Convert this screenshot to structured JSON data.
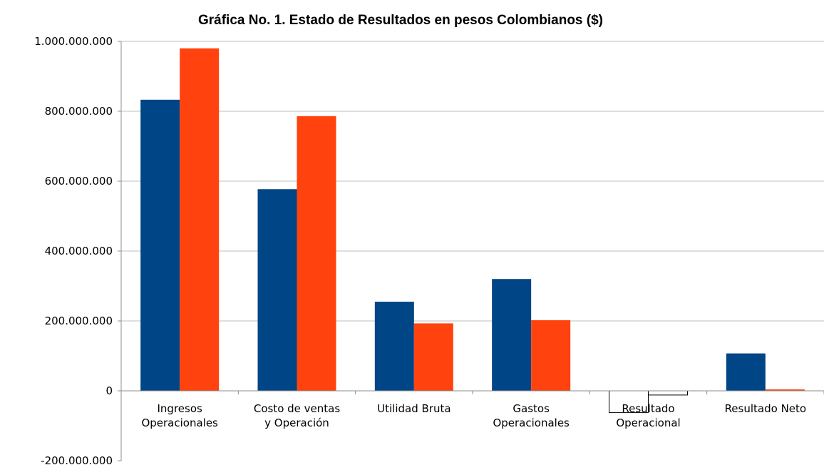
{
  "chart_data": {
    "type": "bar",
    "title": "Gráfica No. 1. Estado de Resultados en pesos Colombianos ($)",
    "xlabel": "",
    "ylabel": "",
    "ylim": [
      -200000000,
      1000000000
    ],
    "yticks": [
      -200000000,
      0,
      200000000,
      400000000,
      600000000,
      800000000,
      1000000000
    ],
    "ytick_labels": [
      "-200.000.000",
      "0",
      "200.000.000",
      "400.000.000",
      "600.000.000",
      "800.000.000",
      "1.000.000.000"
    ],
    "grid": true,
    "legend": "none",
    "categories": [
      [
        "Ingresos",
        "Operacionales"
      ],
      [
        "Costo de ventas",
        "y Operación"
      ],
      [
        "Utilidad Bruta"
      ],
      [
        "Gastos",
        "Operacionales"
      ],
      [
        "Resultado",
        "Operacional"
      ],
      [
        "Resultado Neto"
      ]
    ],
    "series": [
      {
        "color": "#004586",
        "values": [
          833000000,
          577000000,
          255000000,
          320000000,
          -62000000,
          107000000
        ]
      },
      {
        "color": "#ff420e",
        "values": [
          980000000,
          786000000,
          193000000,
          202000000,
          -12000000,
          4000000
        ]
      }
    ]
  }
}
